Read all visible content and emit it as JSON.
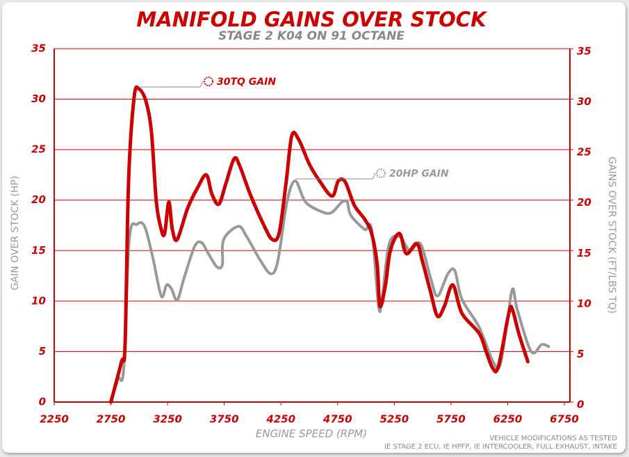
{
  "chart_data": {
    "type": "line",
    "title": "MANIFOLD GAINS OVER STOCK",
    "subtitle": "STAGE 2 K04 ON 91 OCTANE",
    "x_label": "ENGINE SPEED (RPM)",
    "y_label": "GAIN OVER STOCK (HP)",
    "y2_label": "GAINS OVER STOCK (FT/LBS TQ)",
    "notes": [
      "VEHICLE MODIFICATIONS AS TESTED",
      "IE STAGE 2 ECU, IE HPFP, IE INTERCOOLER, FULL EXHAUST, INTAKE"
    ],
    "annotations": [
      "30TQ GAIN",
      "20HP GAIN"
    ],
    "xlim": [
      2250,
      6750
    ],
    "xticks": [
      2250,
      2750,
      3250,
      3750,
      4250,
      4750,
      5250,
      5750,
      6250,
      6750
    ],
    "ylim": [
      0,
      35
    ],
    "yticks": [
      0,
      5,
      10,
      15,
      20,
      25,
      30,
      35
    ],
    "y2lim": [
      0,
      35
    ],
    "y2ticks": [
      0,
      5,
      10,
      15,
      20,
      25,
      30,
      35
    ],
    "grid": true,
    "series": [
      {
        "name": "HP",
        "color": "#999999",
        "axis": "y",
        "x": [
          2750,
          2813,
          2863,
          2912,
          2980,
          3047,
          3120,
          3194,
          3242,
          3285,
          3335,
          3396,
          3488,
          3549,
          3610,
          3684,
          3733,
          3745,
          3874,
          3947,
          4070,
          4162,
          4223,
          4303,
          4376,
          4468,
          4622,
          4701,
          4787,
          4835,
          4866,
          4989,
          5050,
          5111,
          5142,
          5203,
          5295,
          5387,
          5479,
          5570,
          5631,
          5723,
          5784,
          5846,
          5999,
          6121,
          6182,
          6244,
          6293,
          6336,
          6458,
          6550,
          6611
        ],
        "values": [
          0,
          2.3,
          3.3,
          16.1,
          17.6,
          17.4,
          14.3,
          10.5,
          11.6,
          11.2,
          10.1,
          12.3,
          15.4,
          15.8,
          14.7,
          13.4,
          13.6,
          16.1,
          17.4,
          16.4,
          14.0,
          12.7,
          14.0,
          19.8,
          21.9,
          19.8,
          18.8,
          18.8,
          19.8,
          19.8,
          18.5,
          17.1,
          17.1,
          9.5,
          10.2,
          15.6,
          16.4,
          15.0,
          15.7,
          12.3,
          10.5,
          12.7,
          13.0,
          10.2,
          7.4,
          4.0,
          3.6,
          7.8,
          11.2,
          9.1,
          5.0,
          5.7,
          5.5
        ]
      },
      {
        "name": "TQ",
        "color": "#cc0000",
        "axis": "y2",
        "x": [
          2750,
          2844,
          2875,
          2906,
          2955,
          2998,
          3059,
          3108,
          3151,
          3194,
          3224,
          3261,
          3292,
          3335,
          3427,
          3518,
          3592,
          3641,
          3702,
          3763,
          3837,
          3886,
          3978,
          4100,
          4174,
          4235,
          4297,
          4346,
          4407,
          4499,
          4591,
          4701,
          4756,
          4817,
          4897,
          4989,
          5050,
          5099,
          5123,
          5172,
          5215,
          5295,
          5356,
          5448,
          5497,
          5570,
          5631,
          5692,
          5766,
          5846,
          5999,
          6060,
          6121,
          6170,
          6262,
          6293,
          6348,
          6428
        ],
        "values": [
          0,
          4,
          5.7,
          21.9,
          30.2,
          31,
          29.8,
          26.7,
          19.8,
          17.1,
          16.7,
          19.8,
          17.1,
          16.1,
          19.2,
          21.3,
          22.5,
          20.6,
          19.6,
          21.6,
          24.1,
          23.4,
          20.6,
          17.5,
          16.1,
          16.8,
          21.9,
          26.4,
          26.0,
          23.6,
          21.9,
          20.4,
          21.9,
          21.8,
          19.5,
          18.1,
          16.7,
          13.6,
          9.5,
          11.6,
          15.0,
          16.7,
          14.7,
          15.7,
          14.0,
          10.9,
          8.5,
          9.5,
          11.6,
          8.8,
          6.8,
          5.0,
          3.3,
          3.6,
          8.9,
          9.1,
          6.8,
          4.0
        ]
      }
    ]
  }
}
